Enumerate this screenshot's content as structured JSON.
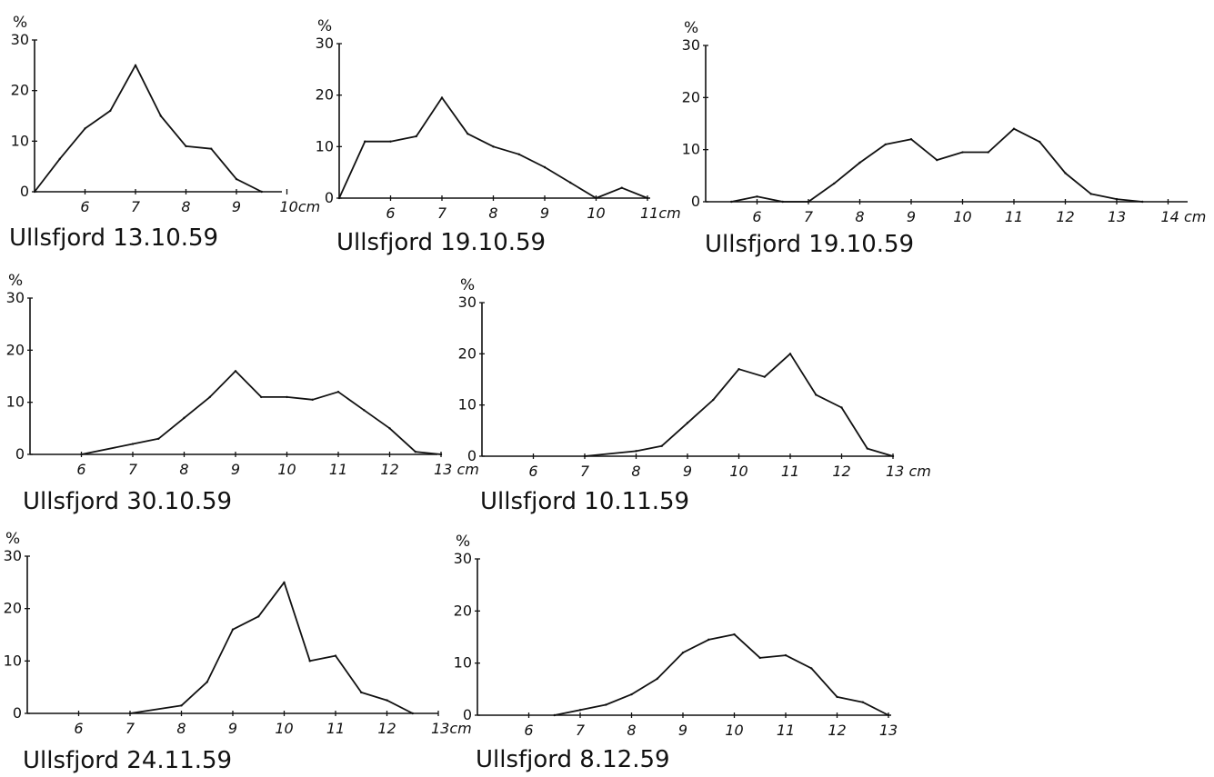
{
  "chart_data": [
    {
      "type": "line",
      "caption": "Ullsfjord 13.10.59",
      "y_unit": "%",
      "x_unit": "cm",
      "x_unit_label": "10cm",
      "yticks": [
        0,
        10,
        20,
        30
      ],
      "xticks": [
        6,
        7,
        8,
        9,
        10
      ],
      "xlim": [
        5,
        10
      ],
      "ylim": [
        0,
        30
      ],
      "x": [
        5,
        5.5,
        6,
        6.5,
        7,
        7.5,
        8,
        8.5,
        9,
        9.5
      ],
      "y": [
        0,
        6.5,
        12.5,
        16,
        25,
        15,
        9,
        8.5,
        2.5,
        0
      ]
    },
    {
      "type": "line",
      "caption": "Ullsfjord 19.10.59",
      "y_unit": "%",
      "x_unit": "cm",
      "x_unit_label": "11cm",
      "yticks": [
        0,
        10,
        20,
        30
      ],
      "xticks": [
        6,
        7,
        8,
        9,
        10,
        11
      ],
      "xlim": [
        5,
        11
      ],
      "ylim": [
        0,
        30
      ],
      "x": [
        5,
        5.5,
        6,
        6.5,
        7,
        7.5,
        8,
        8.5,
        9,
        9.5,
        10,
        10.5,
        11
      ],
      "y": [
        0,
        11,
        11,
        12,
        19.5,
        12.5,
        10,
        8.5,
        6,
        3,
        0,
        2,
        0
      ]
    },
    {
      "type": "line",
      "caption": "Ullsfjord 19.10.59",
      "y_unit": "%",
      "x_unit": "cm",
      "x_unit_label": "14 cm",
      "yticks": [
        0,
        10,
        20,
        30
      ],
      "xticks": [
        6,
        7,
        8,
        9,
        10,
        11,
        12,
        13,
        14
      ],
      "xlim": [
        5,
        14
      ],
      "ylim": [
        0,
        30
      ],
      "x": [
        5.5,
        6,
        6.5,
        7,
        7.5,
        8,
        8.5,
        9,
        9.5,
        10,
        10.5,
        11,
        11.5,
        12,
        12.5,
        13,
        13.5
      ],
      "y": [
        0,
        1,
        0,
        0,
        3.5,
        7.5,
        11,
        12,
        8,
        9.5,
        9.5,
        14,
        11.5,
        5.5,
        1.5,
        0.5,
        0
      ]
    },
    {
      "type": "line",
      "caption": "Ullsfjord 30.10.59",
      "y_unit": "%",
      "x_unit": "cm",
      "x_unit_label": "13 cm",
      "yticks": [
        0,
        10,
        20,
        30
      ],
      "xticks": [
        6,
        7,
        8,
        9,
        10,
        11,
        12,
        13
      ],
      "xlim": [
        5,
        13
      ],
      "ylim": [
        0,
        30
      ],
      "x": [
        6,
        7,
        7.5,
        8,
        8.5,
        9,
        9.5,
        10,
        10.5,
        11,
        11.5,
        12,
        12.5,
        13
      ],
      "y": [
        0,
        2,
        3,
        7,
        11,
        16,
        11,
        11,
        10.5,
        12,
        8.5,
        5,
        0.5,
        0
      ]
    },
    {
      "type": "line",
      "caption": "Ullsfjord 10.11.59",
      "y_unit": "%",
      "x_unit": "cm",
      "x_unit_label": "13 cm",
      "yticks": [
        0,
        10,
        20,
        30
      ],
      "xticks": [
        6,
        7,
        8,
        9,
        10,
        11,
        12,
        13
      ],
      "xlim": [
        5,
        13
      ],
      "ylim": [
        0,
        30
      ],
      "x": [
        7,
        8,
        8.5,
        9,
        9.5,
        10,
        10.5,
        11,
        11.5,
        12,
        12.5,
        13
      ],
      "y": [
        0,
        1,
        2,
        6.5,
        11,
        17,
        15.5,
        20,
        12,
        9.5,
        1.5,
        0
      ]
    },
    {
      "type": "line",
      "caption": "Ullsfjord 24.11.59",
      "y_unit": "%",
      "x_unit": "cm",
      "x_unit_label": "13cm",
      "yticks": [
        0,
        10,
        20,
        30
      ],
      "xticks": [
        6,
        7,
        8,
        9,
        10,
        11,
        12,
        13
      ],
      "xlim": [
        5,
        13
      ],
      "ylim": [
        0,
        30
      ],
      "x": [
        7,
        8,
        8.5,
        9,
        9.5,
        10,
        10.5,
        11,
        11.5,
        12,
        12.5
      ],
      "y": [
        0,
        1.5,
        6,
        16,
        18.5,
        25,
        10,
        11,
        4,
        2.5,
        0
      ]
    },
    {
      "type": "line",
      "caption": "Ullsfjord 8.12.59",
      "y_unit": "%",
      "x_unit": "cm",
      "x_unit_label": "",
      "yticks": [
        0,
        10,
        20,
        30
      ],
      "xticks": [
        6,
        7,
        8,
        9,
        10,
        11,
        12,
        13
      ],
      "xlim": [
        5,
        13
      ],
      "ylim": [
        0,
        30
      ],
      "x": [
        6.5,
        7,
        7.5,
        8,
        8.5,
        9,
        9.5,
        10,
        10.5,
        11,
        11.5,
        12,
        12.5,
        13
      ],
      "y": [
        0,
        1,
        2,
        4,
        7,
        12,
        14.5,
        15.5,
        11,
        11.5,
        9,
        3.5,
        2.5,
        0
      ]
    }
  ]
}
